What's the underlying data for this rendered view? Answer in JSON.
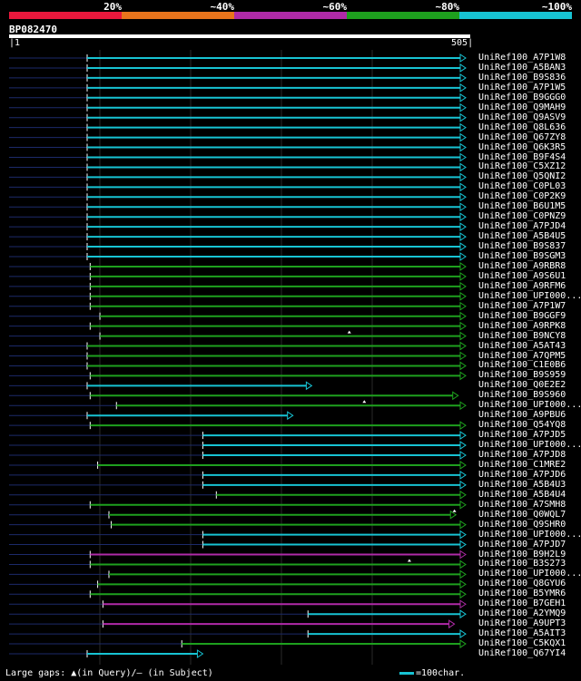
{
  "legend": {
    "labels": [
      "20%",
      "~40%",
      "~60%",
      "~80%",
      "~100%"
    ],
    "colors": [
      "#e8183c",
      "#e8741c",
      "#b02aa8",
      "#1ea01e",
      "#17c3d3"
    ]
  },
  "query": {
    "id": "BP082470",
    "start": "1",
    "end": "505",
    "length": 505
  },
  "footer": {
    "gaps_text": "Large gaps: ▲(in Query)/– (in Subject)",
    "key_text": "=100char."
  },
  "hits": [
    {
      "name": "UniRef100_A7P1W8",
      "from": 1,
      "to": 505,
      "color": "cyan",
      "tail": "open"
    },
    {
      "name": "UniRef100_A5BAN3",
      "from": 1,
      "to": 505,
      "color": "cyan",
      "tail": "open"
    },
    {
      "name": "UniRef100_B9S836",
      "from": 1,
      "to": 505,
      "color": "cyan",
      "tail": "open"
    },
    {
      "name": "UniRef100_A7P1W5",
      "from": 1,
      "to": 505,
      "color": "cyan",
      "tail": "open"
    },
    {
      "name": "UniRef100_B9GGG0",
      "from": 1,
      "to": 505,
      "color": "cyan",
      "tail": "open"
    },
    {
      "name": "UniRef100_Q9MAH9",
      "from": 1,
      "to": 505,
      "color": "cyan",
      "tail": "open"
    },
    {
      "name": "UniRef100_Q9ASV9",
      "from": 1,
      "to": 505,
      "color": "cyan",
      "tail": "open"
    },
    {
      "name": "UniRef100_Q8L636",
      "from": 1,
      "to": 505,
      "color": "cyan",
      "tail": "open"
    },
    {
      "name": "UniRef100_Q67ZY8",
      "from": 1,
      "to": 505,
      "color": "cyan",
      "tail": "open"
    },
    {
      "name": "UniRef100_Q6K3R5",
      "from": 1,
      "to": 505,
      "color": "cyan",
      "tail": "open"
    },
    {
      "name": "UniRef100_B9F4S4",
      "from": 1,
      "to": 505,
      "color": "cyan",
      "tail": "open"
    },
    {
      "name": "UniRef100_C5XZ12",
      "from": 1,
      "to": 505,
      "color": "cyan",
      "tail": "open"
    },
    {
      "name": "UniRef100_Q5QNI2",
      "from": 1,
      "to": 505,
      "color": "cyan",
      "tail": "open"
    },
    {
      "name": "UniRef100_C0PL03",
      "from": 1,
      "to": 505,
      "color": "cyan",
      "tail": "open"
    },
    {
      "name": "UniRef100_C0P2K9",
      "from": 1,
      "to": 505,
      "color": "cyan",
      "tail": "open"
    },
    {
      "name": "UniRef100_B6U1M5",
      "from": 1,
      "to": 505,
      "color": "cyan",
      "tail": "open"
    },
    {
      "name": "UniRef100_C0PNZ9",
      "from": 1,
      "to": 505,
      "color": "cyan",
      "tail": "open"
    },
    {
      "name": "UniRef100_A7PJD4",
      "from": 1,
      "to": 505,
      "color": "cyan",
      "tail": "open"
    },
    {
      "name": "UniRef100_A5B4U5",
      "from": 1,
      "to": 505,
      "color": "cyan",
      "tail": "open"
    },
    {
      "name": "UniRef100_B9S837",
      "from": 1,
      "to": 505,
      "color": "cyan",
      "tail": "open"
    },
    {
      "name": "UniRef100_B9SGM3",
      "from": 1,
      "to": 505,
      "color": "cyan",
      "tail": "open"
    },
    {
      "name": "UniRef100_A9RBR8",
      "from": 5,
      "to": 505,
      "color": "green",
      "tail": "open"
    },
    {
      "name": "UniRef100_A9S6U1",
      "from": 5,
      "to": 505,
      "color": "green",
      "tail": "open"
    },
    {
      "name": "UniRef100_A9RFM6",
      "from": 5,
      "to": 505,
      "color": "green",
      "tail": "open"
    },
    {
      "name": "UniRef100_UPI000...",
      "from": 5,
      "to": 505,
      "color": "green",
      "tail": "open"
    },
    {
      "name": "UniRef100_A7P1W7",
      "from": 5,
      "to": 505,
      "color": "green",
      "tail": "open"
    },
    {
      "name": "UniRef100_B9GGF9",
      "from": 18,
      "to": 505,
      "color": "green",
      "tail": "open"
    },
    {
      "name": "UniRef100_A9RPK8",
      "from": 5,
      "to": 505,
      "color": "green",
      "tail": "open"
    },
    {
      "name": "UniRef100_B9NCY8",
      "from": 18,
      "to": 505,
      "color": "green",
      "tail": "open",
      "gap": 350
    },
    {
      "name": "UniRef100_A5AT43",
      "from": 1,
      "to": 505,
      "color": "green",
      "tail": "open"
    },
    {
      "name": "UniRef100_A7QPM5",
      "from": 1,
      "to": 505,
      "color": "green",
      "tail": "open"
    },
    {
      "name": "UniRef100_C1E0B6",
      "from": 1,
      "to": 505,
      "color": "green",
      "tail": "open"
    },
    {
      "name": "UniRef100_B9S959",
      "from": 5,
      "to": 505,
      "color": "green",
      "tail": "open"
    },
    {
      "name": "UniRef100_Q0E2E2",
      "from": 1,
      "to": 300,
      "color": "cyan",
      "tail": "open"
    },
    {
      "name": "UniRef100_B9S960",
      "from": 5,
      "to": 495,
      "color": "green",
      "tail": "open"
    },
    {
      "name": "UniRef100_UPI000...",
      "from": 40,
      "to": 505,
      "color": "green",
      "tail": "open",
      "gap": 370
    },
    {
      "name": "UniRef100_A9PBU6",
      "from": 1,
      "to": 275,
      "color": "cyan",
      "tail": "open"
    },
    {
      "name": "UniRef100_Q54YQ8",
      "from": 5,
      "to": 505,
      "color": "green",
      "tail": "open"
    },
    {
      "name": "UniRef100_A7PJD5",
      "from": 155,
      "to": 505,
      "color": "cyan",
      "tail": "open"
    },
    {
      "name": "UniRef100_UPI000...",
      "from": 155,
      "to": 505,
      "color": "cyan",
      "tail": "open"
    },
    {
      "name": "UniRef100_A7PJD8",
      "from": 155,
      "to": 505,
      "color": "cyan",
      "tail": "open"
    },
    {
      "name": "UniRef100_C1MRE2",
      "from": 15,
      "to": 505,
      "color": "green",
      "tail": "open"
    },
    {
      "name": "UniRef100_A7PJD6",
      "from": 155,
      "to": 505,
      "color": "cyan",
      "tail": "open"
    },
    {
      "name": "UniRef100_A5B4U3",
      "from": 155,
      "to": 505,
      "color": "cyan",
      "tail": "open"
    },
    {
      "name": "UniRef100_A5B4U4",
      "from": 173,
      "to": 505,
      "color": "green",
      "tail": "open"
    },
    {
      "name": "UniRef100_A7SMH8",
      "from": 5,
      "to": 505,
      "color": "green",
      "tail": "open"
    },
    {
      "name": "UniRef100_Q0WQL7",
      "from": 30,
      "to": 492,
      "color": "green",
      "tail": "open",
      "gap": 490
    },
    {
      "name": "UniRef100_Q9SHR0",
      "from": 33,
      "to": 505,
      "color": "green",
      "tail": "open"
    },
    {
      "name": "UniRef100_UPI000...",
      "from": 155,
      "to": 505,
      "color": "cyan",
      "tail": "open"
    },
    {
      "name": "UniRef100_A7PJD7",
      "from": 155,
      "to": 505,
      "color": "cyan",
      "tail": "open"
    },
    {
      "name": "UniRef100_B9H2L9",
      "from": 5,
      "to": 505,
      "color": "purple",
      "tail": "open"
    },
    {
      "name": "UniRef100_B3S273",
      "from": 5,
      "to": 505,
      "color": "green",
      "tail": "open",
      "gap": 430
    },
    {
      "name": "UniRef100_UPI000...",
      "from": 30,
      "to": 505,
      "color": "green",
      "tail": "open"
    },
    {
      "name": "UniRef100_Q8GYU6",
      "from": 15,
      "to": 505,
      "color": "green",
      "tail": "open"
    },
    {
      "name": "UniRef100_B5YMR6",
      "from": 5,
      "to": 505,
      "color": "green",
      "tail": "open"
    },
    {
      "name": "UniRef100_B7GEH1",
      "from": 22,
      "to": 505,
      "color": "purple",
      "tail": "open"
    },
    {
      "name": "UniRef100_A2YMQ9",
      "from": 295,
      "to": 505,
      "color": "cyan",
      "tail": "open"
    },
    {
      "name": "UniRef100_A9UPT3",
      "from": 22,
      "to": 490,
      "color": "purple",
      "tail": "open"
    },
    {
      "name": "UniRef100_A5AIT3",
      "from": 295,
      "to": 505,
      "color": "cyan",
      "tail": "open"
    },
    {
      "name": "UniRef100_C5KQX1",
      "from": 127,
      "to": 505,
      "color": "green",
      "tail": "open"
    },
    {
      "name": "UniRef100_Q67YI4",
      "from": 1,
      "to": 155,
      "color": "cyan",
      "tail": "open"
    }
  ]
}
